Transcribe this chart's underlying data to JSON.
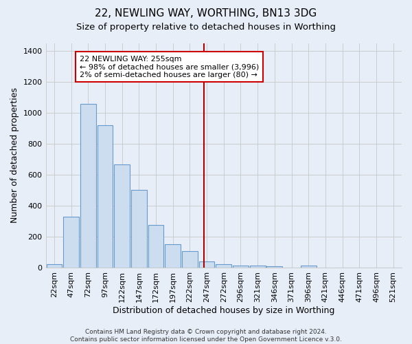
{
  "title": "22, NEWLING WAY, WORTHING, BN13 3DG",
  "subtitle": "Size of property relative to detached houses in Worthing",
  "xlabel": "Distribution of detached houses by size in Worthing",
  "ylabel": "Number of detached properties",
  "bar_categories": [
    "22sqm",
    "47sqm",
    "72sqm",
    "97sqm",
    "122sqm",
    "147sqm",
    "172sqm",
    "197sqm",
    "222sqm",
    "247sqm",
    "272sqm",
    "296sqm",
    "321sqm",
    "346sqm",
    "371sqm",
    "396sqm",
    "421sqm",
    "446sqm",
    "471sqm",
    "496sqm",
    "521sqm"
  ],
  "bar_values": [
    20,
    330,
    1055,
    920,
    665,
    500,
    275,
    150,
    105,
    40,
    22,
    15,
    15,
    10,
    0,
    12,
    0,
    0,
    0,
    0,
    0
  ],
  "bar_color": "#ccddf0",
  "bar_edgecolor": "#6699cc",
  "vline_color": "#aa0000",
  "annotation_text": "22 NEWLING WAY: 255sqm\n← 98% of detached houses are smaller (3,996)\n2% of semi-detached houses are larger (80) →",
  "annotation_box_color": "#cc0000",
  "ylim": [
    0,
    1450
  ],
  "yticks": [
    0,
    200,
    400,
    600,
    800,
    1000,
    1200,
    1400
  ],
  "grid_color": "#cccccc",
  "bg_color": "#e8eef8",
  "footer": "Contains HM Land Registry data © Crown copyright and database right 2024.\nContains public sector information licensed under the Open Government Licence v.3.0.",
  "title_fontsize": 11,
  "subtitle_fontsize": 9.5,
  "label_fontsize": 9,
  "tick_fontsize": 8,
  "footer_fontsize": 6.5
}
